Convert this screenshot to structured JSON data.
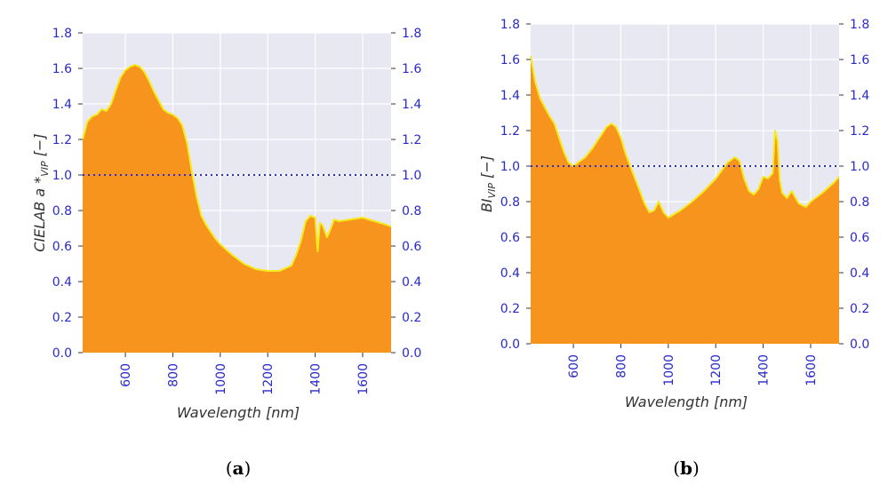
{
  "chart_data": [
    {
      "id": "a",
      "type": "area",
      "caption_letter": "a",
      "xlabel": "Wavelength [nm]",
      "ylabel": "CIELAB a *VIP [−]",
      "ylabel_parts": {
        "base": "CIELAB a *",
        "sub": "VIP",
        "suffix": " [−]"
      },
      "xlim": [
        420,
        1720
      ],
      "ylim": [
        0.0,
        1.8
      ],
      "xticks": [
        600,
        800,
        1000,
        1200,
        1400,
        1600
      ],
      "yticks": [
        0.0,
        0.2,
        0.4,
        0.6,
        0.8,
        1.0,
        1.2,
        1.4,
        1.6,
        1.8
      ],
      "ytick_labels": [
        "0.0",
        "0.2",
        "0.4",
        "0.6",
        "0.8",
        "1.0",
        "1.2",
        "1.4",
        "1.6",
        "1.8"
      ],
      "reference_line": 1.0,
      "grid": true,
      "x": [
        420,
        440,
        460,
        480,
        500,
        520,
        540,
        560,
        580,
        600,
        620,
        640,
        660,
        680,
        700,
        720,
        740,
        760,
        780,
        800,
        820,
        840,
        860,
        880,
        900,
        920,
        940,
        960,
        980,
        1000,
        1050,
        1100,
        1150,
        1200,
        1250,
        1300,
        1320,
        1340,
        1360,
        1380,
        1400,
        1410,
        1420,
        1430,
        1450,
        1460,
        1480,
        1500,
        1550,
        1600,
        1650,
        1700,
        1720
      ],
      "y": [
        1.2,
        1.3,
        1.33,
        1.34,
        1.37,
        1.36,
        1.4,
        1.48,
        1.55,
        1.59,
        1.61,
        1.62,
        1.61,
        1.58,
        1.53,
        1.47,
        1.42,
        1.37,
        1.35,
        1.34,
        1.32,
        1.28,
        1.18,
        1.02,
        0.88,
        0.77,
        0.72,
        0.68,
        0.64,
        0.61,
        0.55,
        0.5,
        0.47,
        0.46,
        0.46,
        0.49,
        0.55,
        0.63,
        0.74,
        0.77,
        0.76,
        0.57,
        0.73,
        0.72,
        0.65,
        0.68,
        0.75,
        0.74,
        0.75,
        0.76,
        0.74,
        0.72,
        0.71
      ]
    },
    {
      "id": "b",
      "type": "area",
      "caption_letter": "b",
      "xlabel": "Wavelength [nm]",
      "ylabel": "BIVIP [−]",
      "ylabel_parts": {
        "base": "BI",
        "sub": "VIP",
        "suffix": " [−]"
      },
      "xlim": [
        420,
        1720
      ],
      "ylim": [
        0.0,
        1.8
      ],
      "xticks": [
        600,
        800,
        1000,
        1200,
        1400,
        1600
      ],
      "yticks": [
        0.0,
        0.2,
        0.4,
        0.6,
        0.8,
        1.0,
        1.2,
        1.4,
        1.6,
        1.8
      ],
      "ytick_labels": [
        "0.0",
        "0.2",
        "0.4",
        "0.6",
        "0.8",
        "1.0",
        "1.2",
        "1.4",
        "1.6",
        "1.8"
      ],
      "reference_line": 1.0,
      "grid": true,
      "x": [
        420,
        440,
        460,
        480,
        500,
        520,
        540,
        560,
        580,
        600,
        620,
        650,
        680,
        700,
        720,
        740,
        760,
        780,
        800,
        820,
        840,
        860,
        880,
        900,
        920,
        940,
        960,
        980,
        1000,
        1050,
        1100,
        1150,
        1200,
        1250,
        1280,
        1300,
        1320,
        1340,
        1360,
        1380,
        1400,
        1420,
        1440,
        1450,
        1460,
        1470,
        1480,
        1500,
        1520,
        1550,
        1580,
        1600,
        1650,
        1700,
        1720
      ],
      "y": [
        1.62,
        1.47,
        1.38,
        1.33,
        1.28,
        1.24,
        1.16,
        1.08,
        1.02,
        1.0,
        1.02,
        1.05,
        1.1,
        1.14,
        1.18,
        1.22,
        1.24,
        1.22,
        1.16,
        1.07,
        1.0,
        0.93,
        0.86,
        0.79,
        0.74,
        0.75,
        0.8,
        0.74,
        0.71,
        0.75,
        0.8,
        0.86,
        0.93,
        1.02,
        1.05,
        1.03,
        0.93,
        0.86,
        0.84,
        0.87,
        0.94,
        0.93,
        0.96,
        1.2,
        1.15,
        0.92,
        0.85,
        0.82,
        0.86,
        0.79,
        0.77,
        0.8,
        0.85,
        0.91,
        0.94
      ]
    }
  ]
}
